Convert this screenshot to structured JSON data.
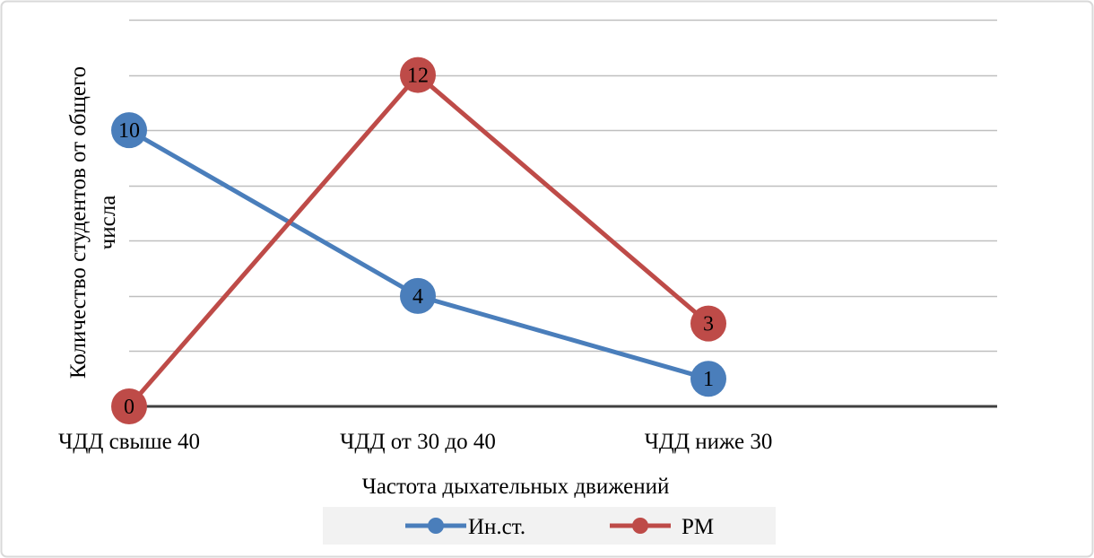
{
  "chart_data": {
    "type": "line",
    "title": "",
    "xlabel": "Частота дыхательных движений",
    "ylabel": "Количество студентов от общего числа",
    "ylabel_lines": [
      "Количество студентов от общего",
      "числа"
    ],
    "categories": [
      "ЧДД свыше 40",
      "ЧДД от 30 до 40",
      "ЧДД ниже 30"
    ],
    "ylim": [
      0,
      12
    ],
    "grid": true,
    "legend_position": "bottom",
    "series": [
      {
        "name": "Ин.ст.",
        "values": [
          10,
          4,
          1
        ],
        "labels": [
          "10",
          "4",
          "1"
        ],
        "color": "#4a7ebb"
      },
      {
        "name": "РМ",
        "values": [
          0,
          12,
          3
        ],
        "labels": [
          "0",
          "12",
          "3"
        ],
        "color": "#be4b48"
      }
    ],
    "colors": {
      "gridline": "#bfbfbf",
      "axis": "#404040",
      "border": "#d9d9d9",
      "legend_bg": "#f2f2f2"
    }
  }
}
